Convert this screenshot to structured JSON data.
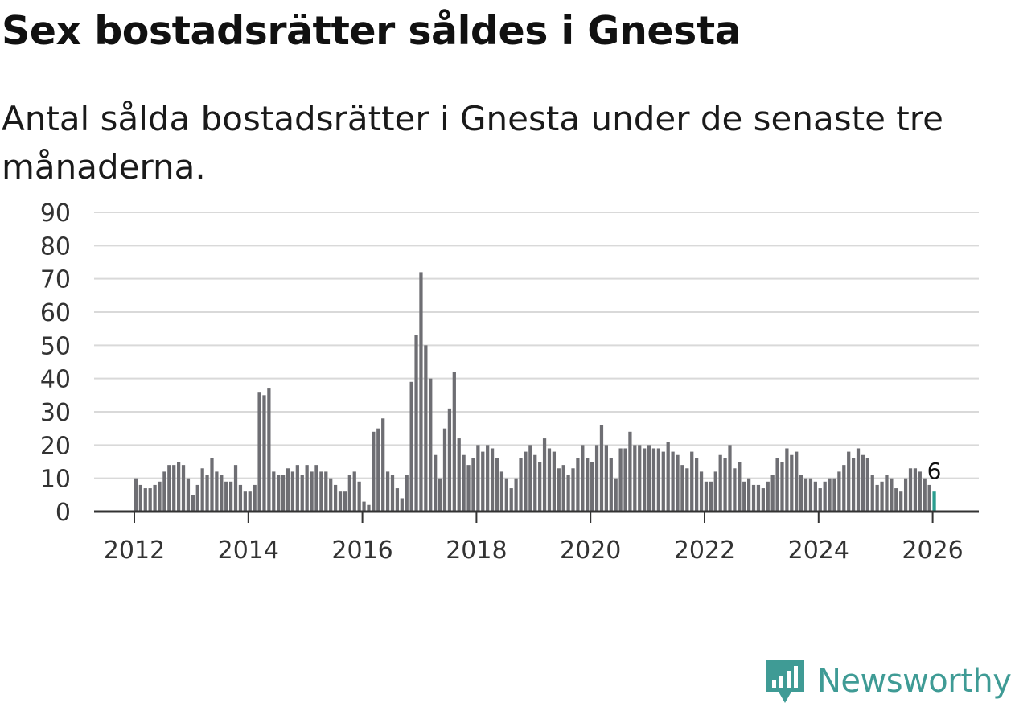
{
  "header": {
    "title": "Sex bostadsrätter såldes i Gnesta",
    "subtitle": "Antal sålda bostadsrätter i Gnesta under de senaste tre månaderna."
  },
  "brand": {
    "name": "Newsworthy",
    "color": "#3f9b95"
  },
  "colors": {
    "bar": "#6e6e73",
    "highlight": "#2a9d8f"
  },
  "chart_data": {
    "type": "bar",
    "title": "Sex bostadsrätter såldes i Gnesta",
    "subtitle": "Antal sålda bostadsrätter i Gnesta under de senaste tre månaderna.",
    "xlabel": "",
    "ylabel": "",
    "ylim": [
      0,
      90
    ],
    "yticks": [
      0,
      10,
      20,
      30,
      40,
      50,
      60,
      70,
      80,
      90
    ],
    "xticks": [
      "2012",
      "2014",
      "2016",
      "2018",
      "2020",
      "2022",
      "2024",
      "2026"
    ],
    "xstart": "2012-01",
    "grid": true,
    "last_value_label": "6",
    "values": [
      10,
      8,
      7,
      7,
      8,
      9,
      12,
      14,
      14,
      15,
      14,
      10,
      5,
      8,
      13,
      11,
      16,
      12,
      11,
      9,
      9,
      14,
      8,
      6,
      6,
      8,
      36,
      35,
      37,
      12,
      11,
      11,
      13,
      12,
      14,
      11,
      14,
      12,
      14,
      12,
      12,
      10,
      8,
      6,
      6,
      11,
      12,
      9,
      3,
      2,
      24,
      25,
      28,
      12,
      11,
      7,
      4,
      11,
      39,
      53,
      72,
      50,
      40,
      17,
      10,
      25,
      31,
      42,
      22,
      17,
      14,
      16,
      20,
      18,
      20,
      19,
      16,
      12,
      10,
      7,
      10,
      16,
      18,
      20,
      17,
      15,
      22,
      19,
      18,
      13,
      14,
      11,
      13,
      16,
      20,
      16,
      15,
      20,
      26,
      20,
      16,
      10,
      19,
      19,
      24,
      20,
      20,
      19,
      20,
      19,
      19,
      18,
      21,
      18,
      17,
      14,
      13,
      18,
      16,
      12,
      9,
      9,
      12,
      17,
      16,
      20,
      13,
      15,
      9,
      10,
      8,
      8,
      7,
      9,
      11,
      16,
      15,
      19,
      17,
      18,
      11,
      10,
      10,
      9,
      7,
      9,
      10,
      10,
      12,
      14,
      18,
      16,
      19,
      17,
      16,
      11,
      8,
      9,
      11,
      10,
      7,
      6,
      10,
      13,
      13,
      12,
      10,
      8,
      6
    ]
  }
}
